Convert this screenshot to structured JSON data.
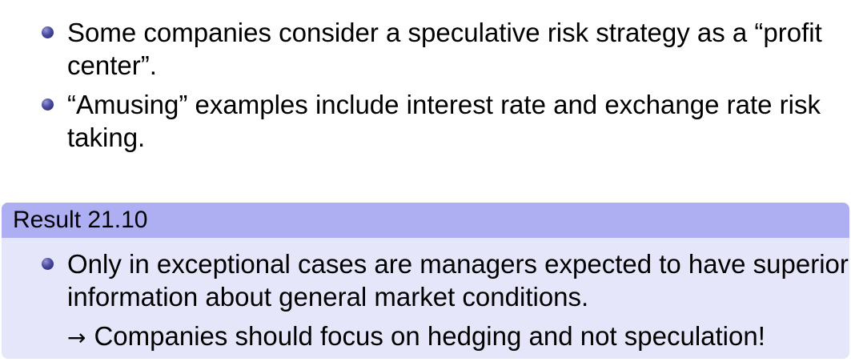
{
  "bullets": [
    "Some companies consider a speculative risk strategy as a “profit center”.",
    "“Amusing” examples include interest rate and exchange rate risk taking."
  ],
  "result": {
    "title": "Result 21.10",
    "item": "Only in exceptional cases are managers expected to have superior information about general market conditions.",
    "arrow": "→",
    "conclusion": "Companies should focus on hedging and not speculation!"
  },
  "colors": {
    "header_bg": "#aeaef2",
    "body_bg": "#e6e6fa",
    "bullet": "#3a3a8c"
  }
}
